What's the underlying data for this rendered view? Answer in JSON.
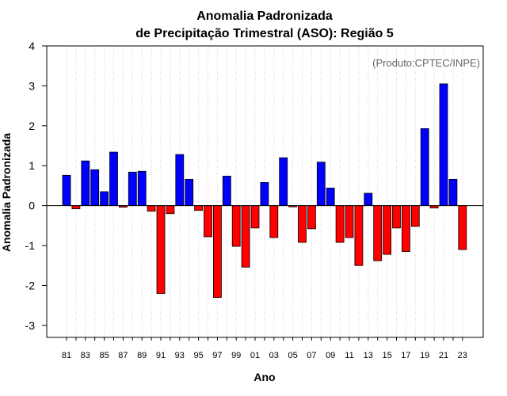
{
  "chart_data": {
    "type": "bar",
    "title_line1": "Anomalia Padronizada",
    "title_line2": "de Precipitação Trimestral (ASO): Região 5",
    "xlabel": "Ano",
    "ylabel": "Anomalia Padronizada",
    "credit": "(Produto:CPTEC/INPE)",
    "ylim": [
      -3.3,
      4.0
    ],
    "yticks": [
      -3,
      -2,
      -1,
      0,
      1,
      2,
      3,
      4
    ],
    "ytick_labels": [
      "-3",
      "-2",
      "-1",
      "0",
      "1",
      "2",
      "3",
      "4"
    ],
    "categories": [
      "81",
      "82",
      "83",
      "84",
      "85",
      "86",
      "87",
      "88",
      "89",
      "90",
      "91",
      "92",
      "93",
      "94",
      "95",
      "96",
      "97",
      "98",
      "99",
      "00",
      "01",
      "02",
      "03",
      "04",
      "05",
      "06",
      "07",
      "08",
      "09",
      "10",
      "11",
      "12",
      "13",
      "14",
      "15",
      "16",
      "17",
      "18",
      "19",
      "20",
      "21",
      "22",
      "23"
    ],
    "xtick_labels": [
      "81",
      "83",
      "85",
      "87",
      "89",
      "91",
      "93",
      "95",
      "97",
      "99",
      "01",
      "03",
      "05",
      "07",
      "09",
      "11",
      "13",
      "15",
      "17",
      "19",
      "21",
      "23"
    ],
    "values": [
      0.76,
      -0.08,
      1.12,
      0.9,
      0.35,
      1.34,
      -0.04,
      0.84,
      0.86,
      -0.14,
      -2.2,
      -0.2,
      1.28,
      0.66,
      -0.12,
      -0.78,
      -2.3,
      0.74,
      -1.02,
      -1.54,
      -0.56,
      0.58,
      -0.8,
      1.2,
      -0.03,
      -0.92,
      -0.58,
      1.09,
      0.44,
      -0.92,
      -0.8,
      -1.5,
      0.31,
      -1.38,
      -1.22,
      -0.56,
      -1.15,
      -0.52,
      1.93,
      -0.06,
      3.05,
      0.66,
      -1.1
    ],
    "colors": {
      "positive": "#0000ff",
      "negative": "#ff0000",
      "zero_line": "#000000",
      "grid": "#d3d3d3"
    }
  }
}
